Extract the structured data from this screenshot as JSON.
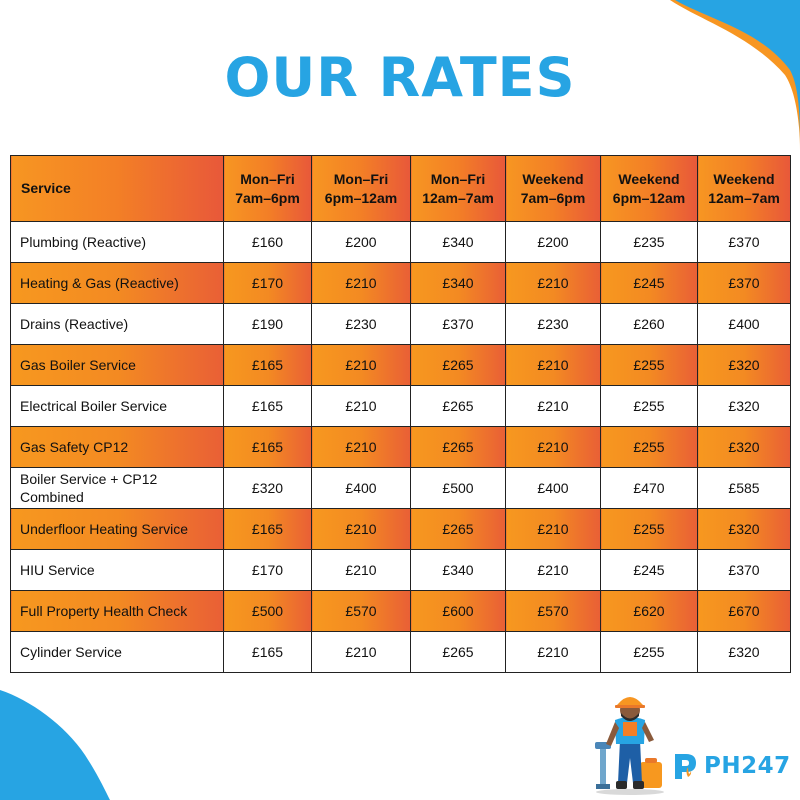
{
  "page": {
    "title": "OUR RATES",
    "accent_color": "#27a4e3",
    "highlight_color": "#f37f26"
  },
  "table": {
    "headers": [
      [
        "Service"
      ],
      [
        "Mon–Fri",
        "7am–6pm"
      ],
      [
        "Mon–Fri",
        "6pm–12am"
      ],
      [
        "Mon–Fri",
        "12am–7am"
      ],
      [
        "Weekend",
        "7am–6pm"
      ],
      [
        "Weekend",
        "6pm–12am"
      ],
      [
        "Weekend",
        "12am–7am"
      ]
    ],
    "rows": [
      {
        "service": [
          "Plumbing (Reactive)"
        ],
        "prices": [
          "£160",
          "£200",
          "£340",
          "£200",
          "£235",
          "£370"
        ]
      },
      {
        "service": [
          "Heating & Gas (Reactive)"
        ],
        "prices": [
          "£170",
          "£210",
          "£340",
          "£210",
          "£245",
          "£370"
        ]
      },
      {
        "service": [
          "Drains (Reactive)"
        ],
        "prices": [
          "£190",
          "£230",
          "£370",
          "£230",
          "£260",
          "£400"
        ]
      },
      {
        "service": [
          "Gas Boiler Service"
        ],
        "prices": [
          "£165",
          "£210",
          "£265",
          "£210",
          "£255",
          "£320"
        ]
      },
      {
        "service": [
          "Electrical Boiler Service"
        ],
        "prices": [
          "£165",
          "£210",
          "£265",
          "£210",
          "£255",
          "£320"
        ]
      },
      {
        "service": [
          "Gas Safety CP12"
        ],
        "prices": [
          "£165",
          "£210",
          "£265",
          "£210",
          "£255",
          "£320"
        ]
      },
      {
        "service": [
          "Boiler Service + CP12",
          "Combined"
        ],
        "prices": [
          "£320",
          "£400",
          "£500",
          "£400",
          "£470",
          "£585"
        ]
      },
      {
        "service": [
          "Underfloor Heating Service"
        ],
        "prices": [
          "£165",
          "£210",
          "£265",
          "£210",
          "£255",
          "£320"
        ]
      },
      {
        "service": [
          "HIU Service"
        ],
        "prices": [
          "£170",
          "£210",
          "£340",
          "£210",
          "£245",
          "£370"
        ]
      },
      {
        "service": [
          "Full Property Health Check"
        ],
        "prices": [
          "£500",
          "£570",
          "£600",
          "£570",
          "£620",
          "£670"
        ]
      },
      {
        "service": [
          "Cylinder Service"
        ],
        "prices": [
          "£165",
          "£210",
          "£265",
          "£210",
          "£255",
          "£320"
        ]
      }
    ]
  },
  "brand": {
    "logo_text": "PH247",
    "mascot_icon": "plumber-mascot-icon"
  }
}
